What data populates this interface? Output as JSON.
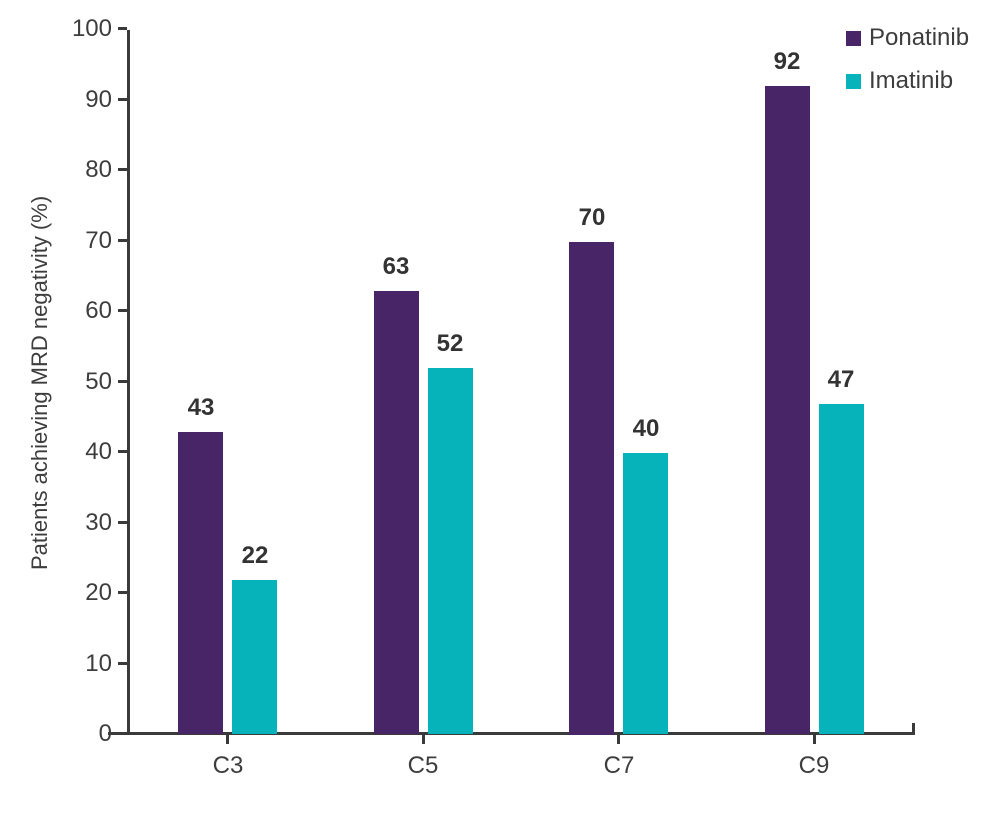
{
  "chart_data": {
    "type": "bar",
    "title": "",
    "xlabel": "",
    "ylabel": "Patients achieving MRD negativity (%)",
    "categories": [
      "C3",
      "C5",
      "C7",
      "C9"
    ],
    "series": [
      {
        "name": "Ponatinib",
        "color": "#482566",
        "values": [
          43,
          63,
          70,
          92
        ]
      },
      {
        "name": "Imatinib",
        "color": "#06b3ba",
        "values": [
          22,
          52,
          40,
          47
        ]
      }
    ],
    "ylim": [
      0,
      100
    ],
    "ytick_step": 10,
    "ytick_labels": [
      "0",
      "10",
      "20",
      "30",
      "40",
      "50",
      "60",
      "70",
      "80",
      "90",
      "100"
    ],
    "bar_value_labels": true,
    "grid": false,
    "legend_position": "top-right"
  },
  "colors": {
    "axis": "#3a3a3a",
    "tick_text": "#3d3d3d",
    "value_label_text": "#333333",
    "background": "#ffffff"
  }
}
